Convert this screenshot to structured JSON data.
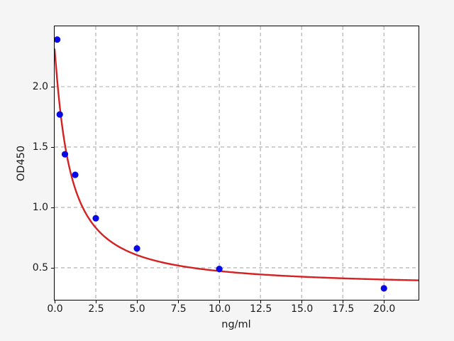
{
  "figure": {
    "background_color": "#f5f5f5",
    "plot_background_color": "#ffffff",
    "spine_color": "#000000",
    "grid_color": "#ababab",
    "tick_color": "#000000",
    "text_color": "#1a1a1a"
  },
  "chart_data": {
    "type": "scatter",
    "title": "",
    "xlabel": "ng/ml",
    "ylabel": "OD450",
    "xlim": [
      0,
      22.1
    ],
    "ylim": [
      0.235,
      2.5
    ],
    "grid": "dashed",
    "legend": "none",
    "xticks": [
      0.0,
      2.5,
      5.0,
      7.5,
      10.0,
      12.5,
      15.0,
      17.5,
      20.0
    ],
    "xtick_labels": [
      "0.0",
      "2.5",
      "5.0",
      "7.5",
      "10.0",
      "12.5",
      "15.0",
      "17.5",
      "20.0"
    ],
    "yticks": [
      0.5,
      1.0,
      1.5,
      2.0
    ],
    "ytick_labels": [
      "0.5",
      "1.0",
      "1.5",
      "2.0"
    ],
    "series": [
      {
        "name": "standard-points",
        "type": "scatter",
        "color": "#0909e6",
        "marker": "circle",
        "marker_radius": 4.6,
        "x": [
          0.15625,
          0.3125,
          0.625,
          1.25,
          2.5,
          5,
          10,
          20
        ],
        "y": [
          2.39,
          1.77,
          1.44,
          1.27,
          0.91,
          0.66,
          0.49,
          0.33
        ]
      },
      {
        "name": "4pl-fit-curve",
        "type": "line",
        "color": "#d42222",
        "line_width": 2.4,
        "fit_4pl": {
          "a": 2.31,
          "b": 1.08,
          "c": 0.91,
          "d": 0.335
        },
        "x_start": 0,
        "x_end": 22.1
      }
    ]
  }
}
